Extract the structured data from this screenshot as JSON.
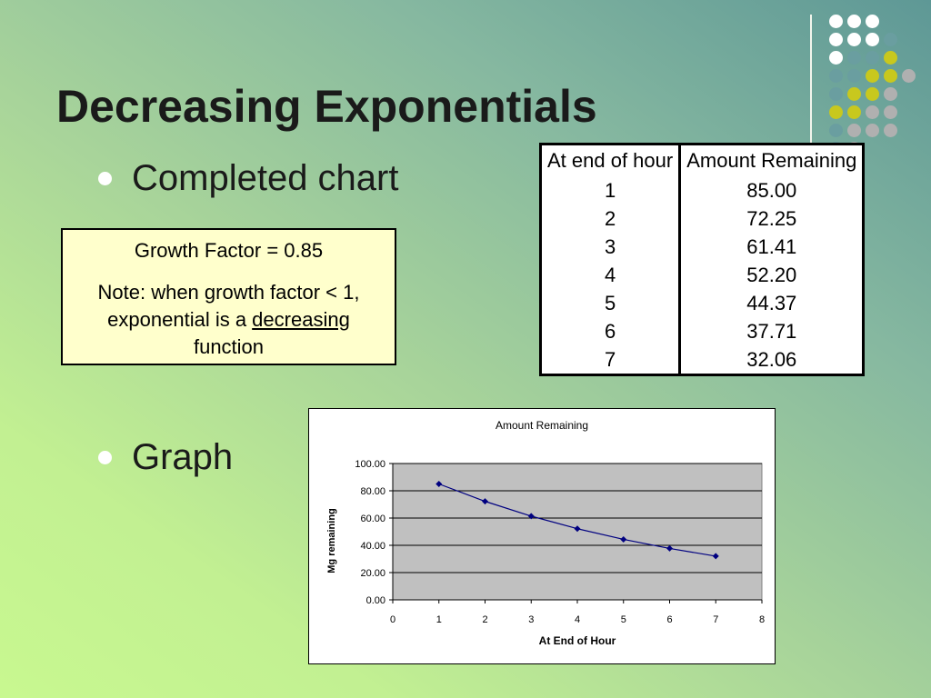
{
  "slide": {
    "title": "Decreasing Exponentials",
    "bullets": [
      "Completed chart",
      "Graph"
    ]
  },
  "note_box": {
    "growth_factor_label": "Growth Factor = 0.85",
    "note_prefix": "Note: when growth factor < 1, exponential is a ",
    "note_emphasis": "decreasing",
    "note_suffix": " function"
  },
  "table": {
    "headers": [
      "At end of hour",
      "Amount Remaining"
    ],
    "rows": [
      [
        "1",
        "85.00"
      ],
      [
        "2",
        "72.25"
      ],
      [
        "3",
        "61.41"
      ],
      [
        "4",
        "52.20"
      ],
      [
        "5",
        "44.37"
      ],
      [
        "6",
        "37.71"
      ],
      [
        "7",
        "32.06"
      ]
    ]
  },
  "chart_data": {
    "type": "line",
    "title": "Amount Remaining",
    "xlabel": "At End of Hour",
    "ylabel": "Mg remaining",
    "x": [
      1,
      2,
      3,
      4,
      5,
      6,
      7
    ],
    "series": [
      {
        "values": [
          85.0,
          72.25,
          61.41,
          52.2,
          44.37,
          37.71,
          32.06
        ]
      }
    ],
    "xlim": [
      0,
      8
    ],
    "ylim": [
      0,
      100
    ],
    "xticks": [
      0,
      1,
      2,
      3,
      4,
      5,
      6,
      7,
      8
    ],
    "yticks": [
      0,
      20,
      40,
      60,
      80,
      100
    ],
    "ytick_labels": [
      "0.00",
      "20.00",
      "40.00",
      "60.00",
      "80.00",
      "100.00"
    ],
    "grid": true,
    "plot_background": "#c0c0c0",
    "line_color": "#000080",
    "marker": "diamond"
  },
  "decor": {
    "dot_colors": {
      "white": "#ffffff",
      "gray": "#b0b0b0",
      "yellow": "#c8c81e",
      "teal": "#6a9ea0"
    }
  }
}
